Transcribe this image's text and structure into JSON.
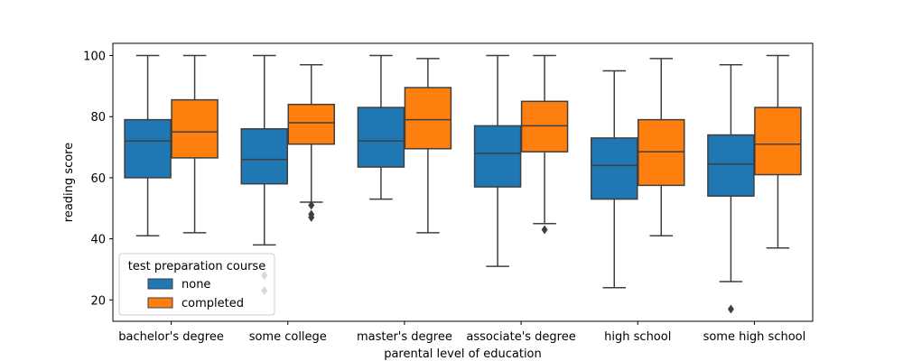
{
  "chart_data": {
    "type": "box",
    "xlabel": "parental level of education",
    "ylabel": "reading score",
    "ylim": [
      13,
      104
    ],
    "yticks": [
      20,
      40,
      60,
      80,
      100
    ],
    "grid": false,
    "legend": {
      "title": "test preparation course",
      "placement": "lower-left"
    },
    "categories": [
      "bachelor's degree",
      "some college",
      "master's degree",
      "associate's degree",
      "high school",
      "some high school"
    ],
    "series": [
      {
        "name": "none",
        "color": "#1f77b4",
        "boxes": [
          {
            "whislo": 41,
            "q1": 60,
            "med": 72,
            "q3": 79,
            "whishi": 100,
            "fliers": []
          },
          {
            "whislo": 38,
            "q1": 58,
            "med": 66,
            "q3": 76,
            "whishi": 100,
            "fliers": [
              28,
              23
            ]
          },
          {
            "whislo": 53,
            "q1": 63.5,
            "med": 72,
            "q3": 83,
            "whishi": 100,
            "fliers": []
          },
          {
            "whislo": 31,
            "q1": 57,
            "med": 68,
            "q3": 77,
            "whishi": 100,
            "fliers": []
          },
          {
            "whislo": 24,
            "q1": 53,
            "med": 64,
            "q3": 73,
            "whishi": 95,
            "fliers": []
          },
          {
            "whislo": 26,
            "q1": 54,
            "med": 64.5,
            "q3": 74,
            "whishi": 97,
            "fliers": [
              17
            ]
          }
        ]
      },
      {
        "name": "completed",
        "color": "#ff7f0e",
        "boxes": [
          {
            "whislo": 42,
            "q1": 66.5,
            "med": 75,
            "q3": 85.5,
            "whishi": 100,
            "fliers": []
          },
          {
            "whislo": 52,
            "q1": 71,
            "med": 78,
            "q3": 84,
            "whishi": 97,
            "fliers": [
              51,
              48,
              47
            ]
          },
          {
            "whislo": 42,
            "q1": 69.5,
            "med": 79,
            "q3": 89.5,
            "whishi": 99,
            "fliers": []
          },
          {
            "whislo": 45,
            "q1": 68.5,
            "med": 77,
            "q3": 85,
            "whishi": 100,
            "fliers": [
              43
            ]
          },
          {
            "whislo": 41,
            "q1": 57.5,
            "med": 68.5,
            "q3": 79,
            "whishi": 99,
            "fliers": []
          },
          {
            "whislo": 37,
            "q1": 61,
            "med": 71,
            "q3": 83,
            "whishi": 100,
            "fliers": []
          }
        ]
      }
    ]
  }
}
